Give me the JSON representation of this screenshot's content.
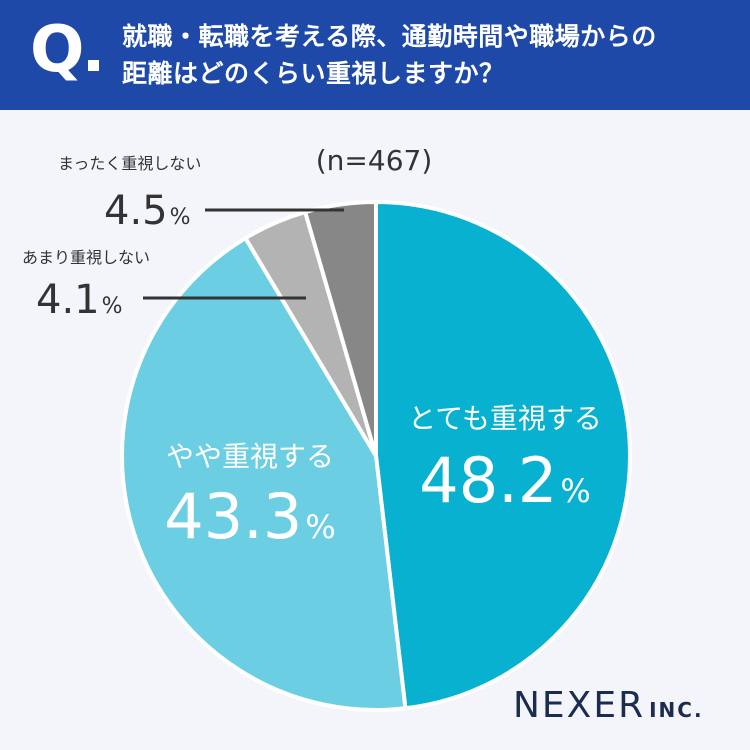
{
  "header": {
    "q_mark": "Q",
    "question_line1": "就職・転職を考える際、通勤時間や職場からの",
    "question_line2": "距離はどのくらい重視しますか？"
  },
  "chart_data": {
    "type": "pie",
    "sample_size": "(n=467)",
    "percent_sign": "%",
    "start_angle_deg": 0,
    "direction": "clockwise",
    "slices": [
      {
        "label": "とても重視する",
        "value": 48.2,
        "value_text": "48.2",
        "color": "#08b1d0"
      },
      {
        "label": "やや重視する",
        "value": 43.3,
        "value_text": "43.3",
        "color": "#6ccee2"
      },
      {
        "label": "あまり重視しない",
        "value": 4.1,
        "value_text": "4.1",
        "color": "#b3b3b3"
      },
      {
        "label": "まったく重視しない",
        "value": 4.5,
        "value_text": "4.5",
        "color": "#878787"
      }
    ]
  },
  "logo": {
    "main": "NEXER",
    "inc": "INC."
  }
}
